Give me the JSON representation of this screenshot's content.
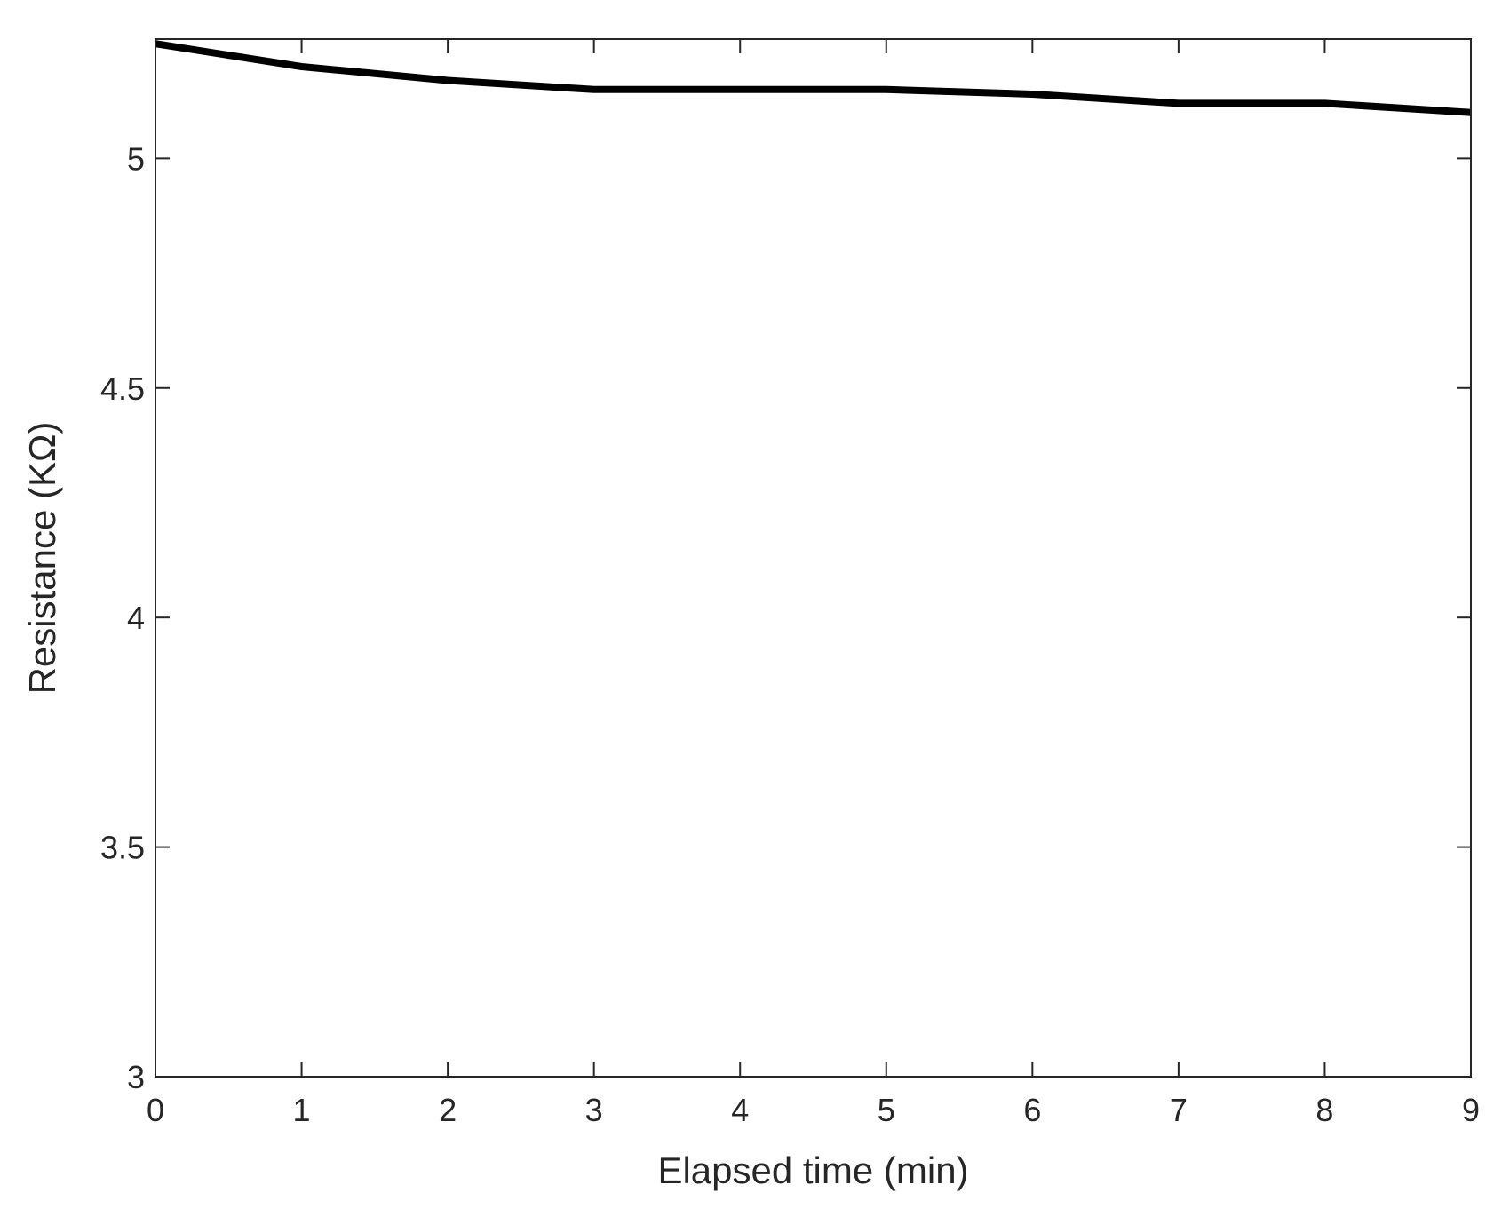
{
  "chart_data": {
    "type": "line",
    "title": "",
    "xlabel": "Elapsed time (min)",
    "ylabel": "Resistance (KΩ)",
    "xlim": [
      0,
      9
    ],
    "ylim": [
      3,
      5.26
    ],
    "xticks": [
      0,
      1,
      2,
      3,
      4,
      5,
      6,
      7,
      8,
      9
    ],
    "xtick_labels": [
      "0",
      "1",
      "2",
      "3",
      "4",
      "5",
      "6",
      "7",
      "8",
      "9"
    ],
    "yticks": [
      3,
      3.5,
      4,
      4.5,
      5
    ],
    "ytick_labels": [
      "3",
      "3.5",
      "4",
      "4.5",
      "5"
    ],
    "grid": false,
    "legend": "none",
    "series": [
      {
        "color": "#000000",
        "x": [
          0,
          1,
          2,
          3,
          4,
          5,
          6,
          7,
          8,
          9
        ],
        "y": [
          5.25,
          5.2,
          5.17,
          5.15,
          5.15,
          5.15,
          5.14,
          5.12,
          5.12,
          5.1
        ]
      }
    ]
  }
}
